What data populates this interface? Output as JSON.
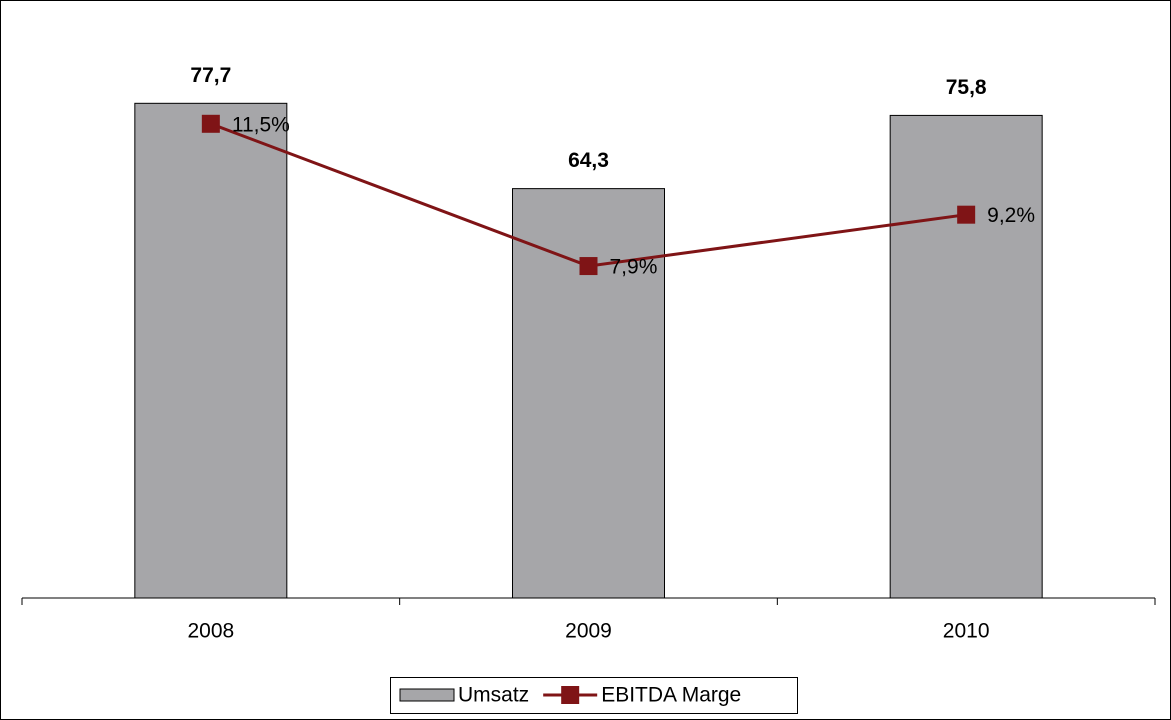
{
  "chart_data": {
    "type": "bar",
    "categories": [
      "2008",
      "2009",
      "2010"
    ],
    "series": [
      {
        "name": "Umsatz",
        "type": "bar",
        "color": "#a6a6a9",
        "values": [
          77.7,
          64.3,
          75.8
        ],
        "value_labels": [
          "77,7",
          "64,3",
          "75,8"
        ]
      },
      {
        "name": "EBITDA Marge",
        "type": "line",
        "axis": "y2",
        "color": "#7f1416",
        "values": [
          11.5,
          7.9,
          9.2
        ],
        "value_labels": [
          "11,5%",
          "7,9%",
          "9,2%"
        ]
      }
    ],
    "ylim": [
      0,
      90
    ],
    "y2lim": [
      -0.5,
      14
    ],
    "legend": "bottom"
  }
}
